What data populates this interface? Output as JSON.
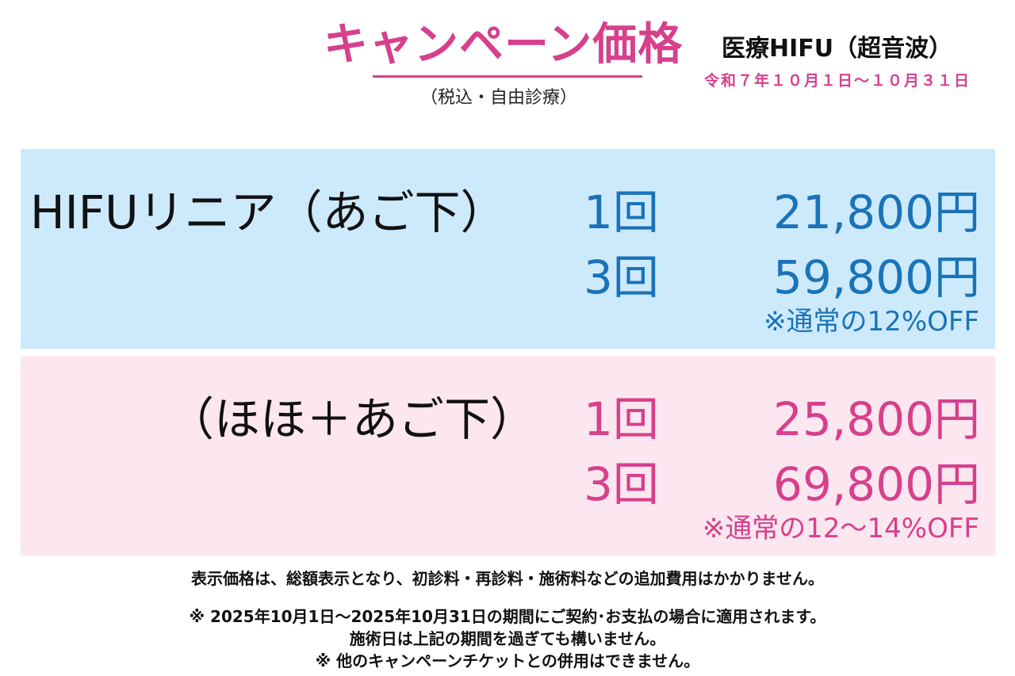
{
  "header": {
    "title": "キャンペーン価格",
    "subtitle": "（税込・自由診療）",
    "service": "医療HIFU（超音波）",
    "period": "令和７年１０月１日～１０月３１日"
  },
  "plans": [
    {
      "name": "HIFUリニア（あご下）",
      "prices": [
        {
          "count": "1回",
          "amount": "21,800円"
        },
        {
          "count": "3回",
          "amount": "59,800円"
        }
      ],
      "note": "※通常の12%OFF"
    },
    {
      "name": "（ほほ＋あご下）",
      "prices": [
        {
          "count": "1回",
          "amount": "25,800円"
        },
        {
          "count": "3回",
          "amount": "69,800円"
        }
      ],
      "note": "※通常の12～14%OFF"
    }
  ],
  "footer": [
    "表示価格は、総額表示となり、初診料・再診料・施術料などの追加費用はかかりません。",
    "※ 2025年10月1日～2025年10月31日の期間にご契約･お支払の場合に適用されます。",
    "施術日は上記の期間を過ぎても構いません。",
    "※ 他のキャンペーンチケットとの併用はできません。"
  ],
  "colors": {
    "accent_pink": "#d6408c",
    "accent_blue": "#1a73b8",
    "panel_blue_bg": "#cdeafc",
    "panel_pink_bg": "#fce6ef",
    "text_dark": "#111111"
  }
}
